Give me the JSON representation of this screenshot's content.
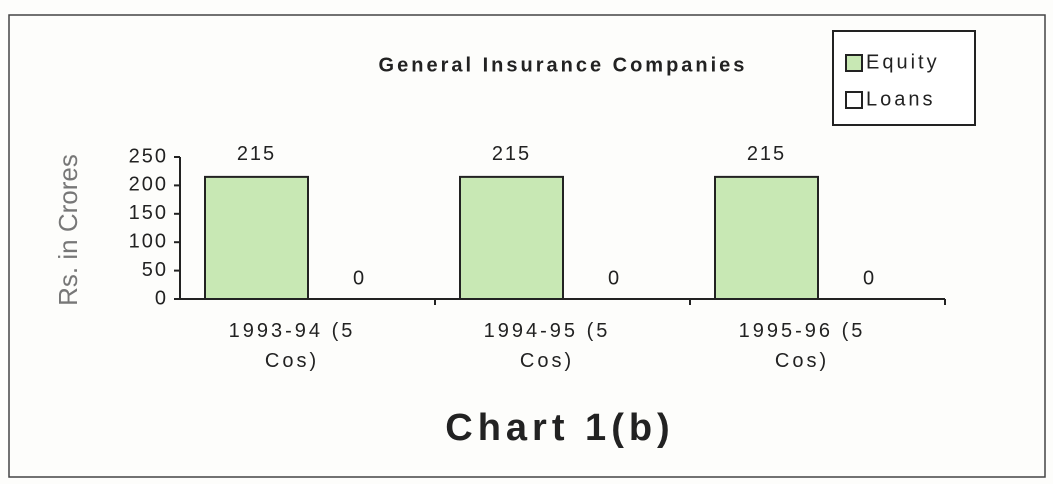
{
  "chart_data": {
    "type": "bar",
    "title": "General Insurance Companies",
    "caption": "Chart 1(b)",
    "y_label": "Rs. in Crores",
    "categories": [
      "1993-94 (5 Cos)",
      "1994-95 (5 Cos)",
      "1995-96 (5 Cos)"
    ],
    "series": [
      {
        "name": "Equity",
        "color": "#c8e8b4",
        "values": [
          215,
          215,
          215
        ]
      },
      {
        "name": "Loans",
        "color": "#ffffff",
        "values": [
          0,
          0,
          0
        ]
      }
    ],
    "ylim": [
      0,
      250
    ],
    "yticks": [
      0,
      50,
      100,
      150,
      200,
      250
    ],
    "legend": "top-right",
    "grid": false
  }
}
